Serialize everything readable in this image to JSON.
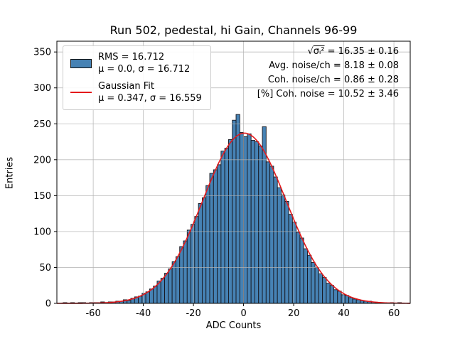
{
  "title": "Run 502, pedestal, hi Gain, Channels 96-99",
  "axes": {
    "xlabel": "ADC Counts",
    "ylabel": "Entries"
  },
  "legend": {
    "hist_line1": "RMS = 16.712",
    "hist_line2": "μ = 0.0, σ = 16.712",
    "fit_line1": "Gaussian Fit",
    "fit_line2": "μ = 0.347, σ = 16.559"
  },
  "annotations": {
    "sqrt_prefix": "√",
    "sqrt_expr": "σᵢ²",
    "sqrt_suffix": " = 16.35 ± 0.16",
    "line2": "Avg. noise/ch = 8.18 ± 0.08",
    "line3": "Coh. noise/ch = 0.86 ± 0.28",
    "line4": "[%] Coh. noise = 10.52 ± 3.46"
  },
  "colors": {
    "bar_fill": "#4682b4",
    "bar_edge": "#16161d",
    "fit_line": "#e41a1c",
    "grid": "#b0b0b0",
    "spine": "#000000"
  },
  "chart_data": {
    "type": "bar",
    "subtype": "histogram",
    "title": "Run 502, pedestal, hi Gain, Channels 96-99",
    "xlabel": "ADC Counts",
    "ylabel": "Entries",
    "xlim": [
      -74.5,
      66.5
    ],
    "ylim": [
      0,
      365
    ],
    "x_ticks": [
      -60,
      -40,
      -20,
      0,
      20,
      40,
      60
    ],
    "y_ticks": [
      0,
      50,
      100,
      150,
      200,
      250,
      300,
      350
    ],
    "grid": true,
    "legend_position": "upper left",
    "histogram": {
      "bin_start": -72,
      "bin_width": 1.5,
      "counts": [
        1,
        0,
        1,
        0,
        1,
        1,
        0,
        1,
        1,
        1,
        2,
        1,
        2,
        2,
        3,
        3,
        5,
        4,
        7,
        9,
        10,
        14,
        16,
        20,
        24,
        31,
        35,
        42,
        48,
        58,
        65,
        79,
        87,
        102,
        110,
        121,
        139,
        147,
        164,
        181,
        186,
        193,
        212,
        216,
        228,
        255,
        263,
        238,
        232,
        236,
        227,
        225,
        219,
        246,
        197,
        191,
        176,
        161,
        151,
        142,
        124,
        113,
        99,
        91,
        76,
        67,
        57,
        50,
        41,
        36,
        28,
        25,
        19,
        17,
        12,
        11,
        8,
        6,
        5,
        4,
        3,
        3,
        2,
        1,
        1,
        1,
        0,
        1,
        0,
        1
      ]
    },
    "gaussian_fit": {
      "amplitude": 237,
      "mu": 0.347,
      "sigma": 16.559
    },
    "stats": {
      "rms": 16.712,
      "hist_mu": 0.0,
      "hist_sigma": 16.712,
      "fit_mu": 0.347,
      "fit_sigma": 16.559,
      "sqrt_sigma_i2": "16.35 ± 0.16",
      "avg_noise_per_ch": "8.18 ± 0.08",
      "coh_noise_per_ch": "0.86 ± 0.28",
      "pct_coh_noise": "10.52 ± 3.46"
    }
  }
}
